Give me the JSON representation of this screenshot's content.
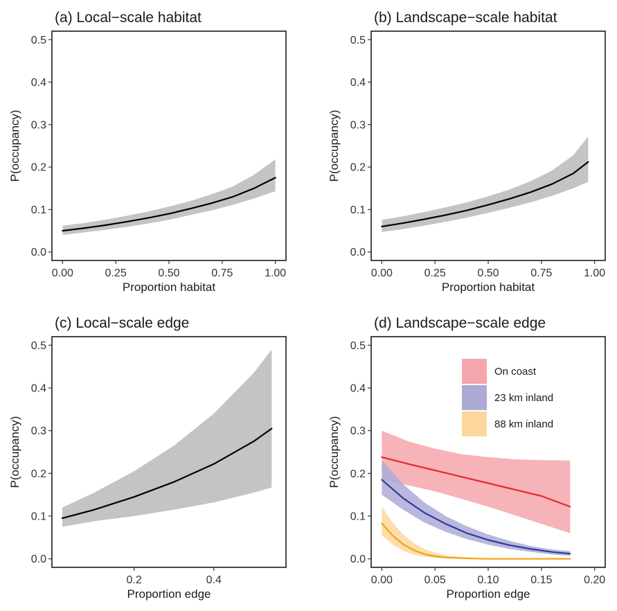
{
  "chart_data": [
    {
      "type": "line",
      "title": "(a) Local−scale habitat",
      "xlabel": "Proportion habitat",
      "ylabel": "P(occupancy)",
      "xlim": [
        -0.05,
        1.05
      ],
      "ylim": [
        -0.02,
        0.52
      ],
      "xticks": [
        0,
        0.25,
        0.5,
        0.75,
        1.0
      ],
      "xtick_labels": [
        "0.00",
        "0.25",
        "0.50",
        "0.75",
        "1.00"
      ],
      "yticks": [
        0,
        0.1,
        0.2,
        0.3,
        0.4,
        0.5
      ],
      "ytick_labels": [
        "0.0",
        "0.1",
        "0.2",
        "0.3",
        "0.4",
        "0.5"
      ],
      "grid": false,
      "series": [
        {
          "color": "#000000",
          "band_color": "#c4c4c4",
          "x": [
            0,
            0.1,
            0.2,
            0.3,
            0.4,
            0.5,
            0.6,
            0.7,
            0.8,
            0.9,
            1.0
          ],
          "y": [
            0.05,
            0.056,
            0.063,
            0.071,
            0.08,
            0.09,
            0.102,
            0.115,
            0.13,
            0.15,
            0.175
          ],
          "lower": [
            0.04,
            0.046,
            0.052,
            0.059,
            0.067,
            0.076,
            0.087,
            0.098,
            0.111,
            0.126,
            0.143
          ],
          "upper": [
            0.062,
            0.068,
            0.076,
            0.085,
            0.095,
            0.107,
            0.12,
            0.136,
            0.154,
            0.182,
            0.218
          ]
        }
      ]
    },
    {
      "type": "line",
      "title": "(b) Landscape−scale habitat",
      "xlabel": "Proportion habitat",
      "ylabel": "P(occupancy)",
      "xlim": [
        -0.05,
        1.05
      ],
      "ylim": [
        -0.02,
        0.52
      ],
      "xticks": [
        0,
        0.25,
        0.5,
        0.75,
        1.0
      ],
      "xtick_labels": [
        "0.00",
        "0.25",
        "0.50",
        "0.75",
        "1.00"
      ],
      "yticks": [
        0,
        0.1,
        0.2,
        0.3,
        0.4,
        0.5
      ],
      "ytick_labels": [
        "0.0",
        "0.1",
        "0.2",
        "0.3",
        "0.4",
        "0.5"
      ],
      "grid": false,
      "series": [
        {
          "color": "#000000",
          "band_color": "#c4c4c4",
          "x": [
            0,
            0.1,
            0.2,
            0.3,
            0.4,
            0.5,
            0.6,
            0.7,
            0.8,
            0.9,
            0.97
          ],
          "y": [
            0.06,
            0.068,
            0.077,
            0.087,
            0.098,
            0.111,
            0.125,
            0.141,
            0.16,
            0.185,
            0.212
          ],
          "lower": [
            0.047,
            0.054,
            0.062,
            0.071,
            0.081,
            0.092,
            0.104,
            0.117,
            0.132,
            0.15,
            0.165
          ],
          "upper": [
            0.076,
            0.084,
            0.094,
            0.105,
            0.117,
            0.131,
            0.147,
            0.167,
            0.192,
            0.228,
            0.272
          ]
        }
      ]
    },
    {
      "type": "line",
      "title": "(c) Local−scale edge",
      "xlabel": "Proportion edge",
      "ylabel": "P(occupancy)",
      "xlim": [
        -0.006,
        0.581
      ],
      "ylim": [
        -0.02,
        0.52
      ],
      "xticks": [
        0.2,
        0.4
      ],
      "xtick_labels": [
        "0.2",
        "0.4"
      ],
      "yticks": [
        0,
        0.1,
        0.2,
        0.3,
        0.4,
        0.5
      ],
      "ytick_labels": [
        "0.0",
        "0.1",
        "0.2",
        "0.3",
        "0.4",
        "0.5"
      ],
      "grid": false,
      "series": [
        {
          "color": "#000000",
          "band_color": "#c4c4c4",
          "x": [
            0.02,
            0.1,
            0.2,
            0.3,
            0.4,
            0.5,
            0.545
          ],
          "y": [
            0.095,
            0.115,
            0.145,
            0.18,
            0.222,
            0.275,
            0.305
          ],
          "lower": [
            0.075,
            0.088,
            0.1,
            0.115,
            0.132,
            0.155,
            0.167
          ],
          "upper": [
            0.12,
            0.155,
            0.205,
            0.265,
            0.34,
            0.435,
            0.49
          ]
        }
      ]
    },
    {
      "type": "line",
      "title": "(d) Landscape−scale edge",
      "xlabel": "Proportion edge",
      "ylabel": "P(occupancy)",
      "xlim": [
        -0.01,
        0.21
      ],
      "ylim": [
        -0.02,
        0.52
      ],
      "xticks": [
        0,
        0.05,
        0.1,
        0.15,
        0.2
      ],
      "xtick_labels": [
        "0.00",
        "0.05",
        "0.10",
        "0.15",
        "0.20"
      ],
      "yticks": [
        0,
        0.1,
        0.2,
        0.3,
        0.4,
        0.5
      ],
      "ytick_labels": [
        "0.0",
        "0.1",
        "0.2",
        "0.3",
        "0.4",
        "0.5"
      ],
      "grid": false,
      "legend_position": "top-right",
      "series": [
        {
          "name": "On coast",
          "color": "#e5282c",
          "band_color": "#f4a6ac",
          "x": [
            0,
            0.025,
            0.05,
            0.075,
            0.1,
            0.125,
            0.15,
            0.177
          ],
          "y": [
            0.238,
            0.222,
            0.207,
            0.192,
            0.177,
            0.162,
            0.147,
            0.122
          ],
          "lower": [
            0.185,
            0.172,
            0.158,
            0.14,
            0.122,
            0.102,
            0.082,
            0.06
          ],
          "upper": [
            0.3,
            0.275,
            0.258,
            0.245,
            0.238,
            0.233,
            0.231,
            0.23
          ]
        },
        {
          "name": "23 km inland",
          "color": "#2c3b9a",
          "band_color": "#aeaad6",
          "x": [
            0,
            0.02,
            0.04,
            0.06,
            0.08,
            0.1,
            0.12,
            0.14,
            0.16,
            0.177
          ],
          "y": [
            0.185,
            0.142,
            0.108,
            0.082,
            0.06,
            0.044,
            0.032,
            0.023,
            0.016,
            0.012
          ],
          "lower": [
            0.15,
            0.115,
            0.085,
            0.063,
            0.046,
            0.033,
            0.023,
            0.016,
            0.01,
            0.007
          ],
          "upper": [
            0.23,
            0.175,
            0.132,
            0.1,
            0.076,
            0.057,
            0.042,
            0.03,
            0.022,
            0.018
          ]
        },
        {
          "name": "88 km inland",
          "color": "#f2a20f",
          "band_color": "#fbd79e",
          "x": [
            0,
            0.01,
            0.02,
            0.03,
            0.04,
            0.05,
            0.06,
            0.08,
            0.1,
            0.12,
            0.15,
            0.177
          ],
          "y": [
            0.083,
            0.055,
            0.034,
            0.02,
            0.011,
            0.006,
            0.003,
            0.001,
            0,
            0,
            0,
            0
          ],
          "lower": [
            0.055,
            0.034,
            0.019,
            0.01,
            0.005,
            0.002,
            0.001,
            0,
            0,
            0,
            0,
            0
          ],
          "upper": [
            0.122,
            0.085,
            0.057,
            0.037,
            0.023,
            0.014,
            0.008,
            0.003,
            0.001,
            0.001,
            0.001,
            0.001
          ]
        }
      ]
    }
  ]
}
